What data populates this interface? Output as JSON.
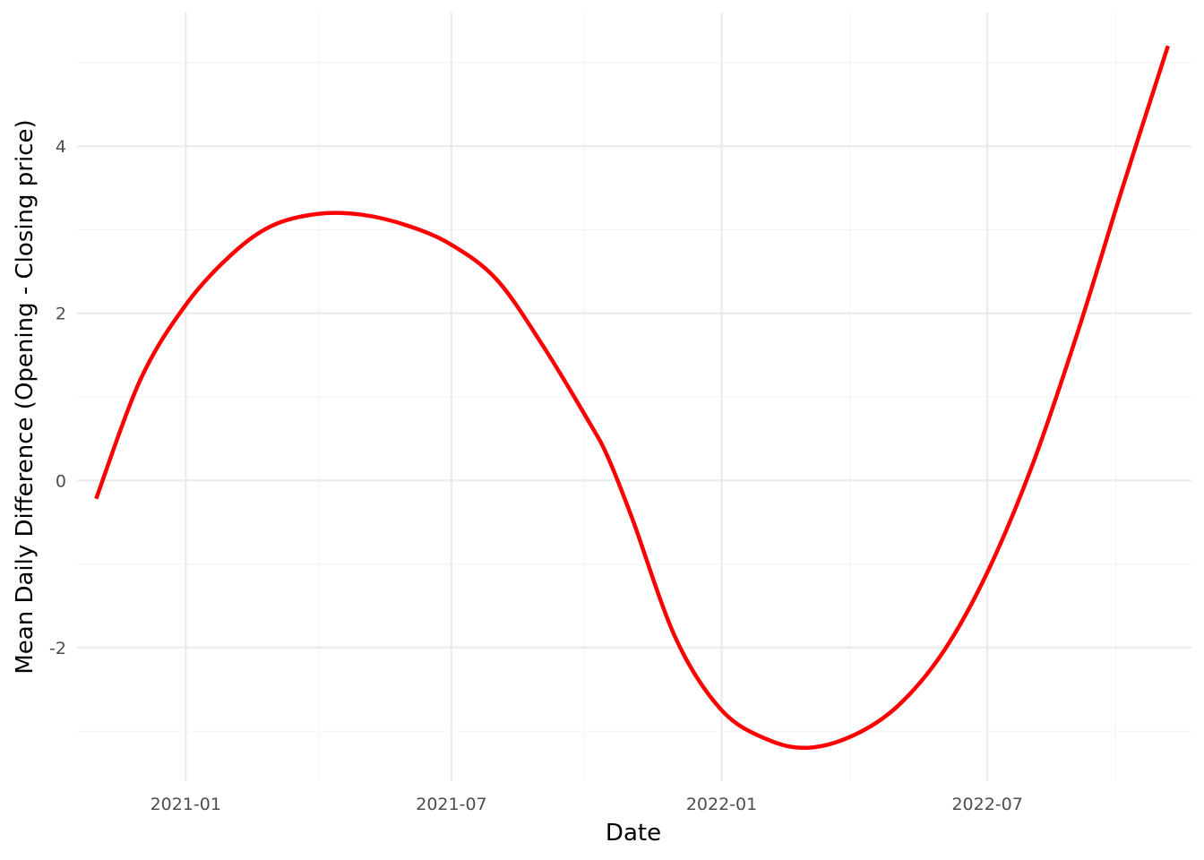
{
  "chart_data": {
    "type": "line",
    "title": "",
    "xlabel": "Date",
    "ylabel": "Mean Daily Difference (Opening - Closing price)",
    "x_ticks": [
      "2021-01",
      "2021-07",
      "2022-01",
      "2022-07"
    ],
    "x_tick_dates": [
      "2021-01-01",
      "2021-07-01",
      "2022-01-01",
      "2022-07-01"
    ],
    "y_ticks": [
      -2,
      0,
      2,
      4
    ],
    "y_tick_labels": [
      "-2",
      "0",
      "2",
      "4"
    ],
    "xlim": [
      "2020-10-19",
      "2022-11-17"
    ],
    "ylim": [
      -3.6,
      5.6
    ],
    "grid": true,
    "legend": "none",
    "series": [
      {
        "color": "#ff0000",
        "x": [
          "2020-11-01",
          "2020-12-01",
          "2021-01-01",
          "2021-02-01",
          "2021-03-01",
          "2021-04-01",
          "2021-05-01",
          "2021-06-01",
          "2021-07-01",
          "2021-08-01",
          "2021-09-01",
          "2021-10-01",
          "2021-10-15",
          "2021-11-01",
          "2021-12-01",
          "2022-01-01",
          "2022-02-01",
          "2022-03-01",
          "2022-04-01",
          "2022-05-01",
          "2022-06-01",
          "2022-07-01",
          "2022-08-01",
          "2022-09-01",
          "2022-10-01",
          "2022-11-01"
        ],
        "y": [
          -0.22,
          1.2,
          2.1,
          2.7,
          3.05,
          3.19,
          3.18,
          3.05,
          2.82,
          2.4,
          1.62,
          0.75,
          0.3,
          -0.45,
          -1.9,
          -2.75,
          -3.1,
          -3.2,
          -3.05,
          -2.7,
          -2.05,
          -1.1,
          0.2,
          1.8,
          3.5,
          5.2
        ]
      }
    ]
  }
}
